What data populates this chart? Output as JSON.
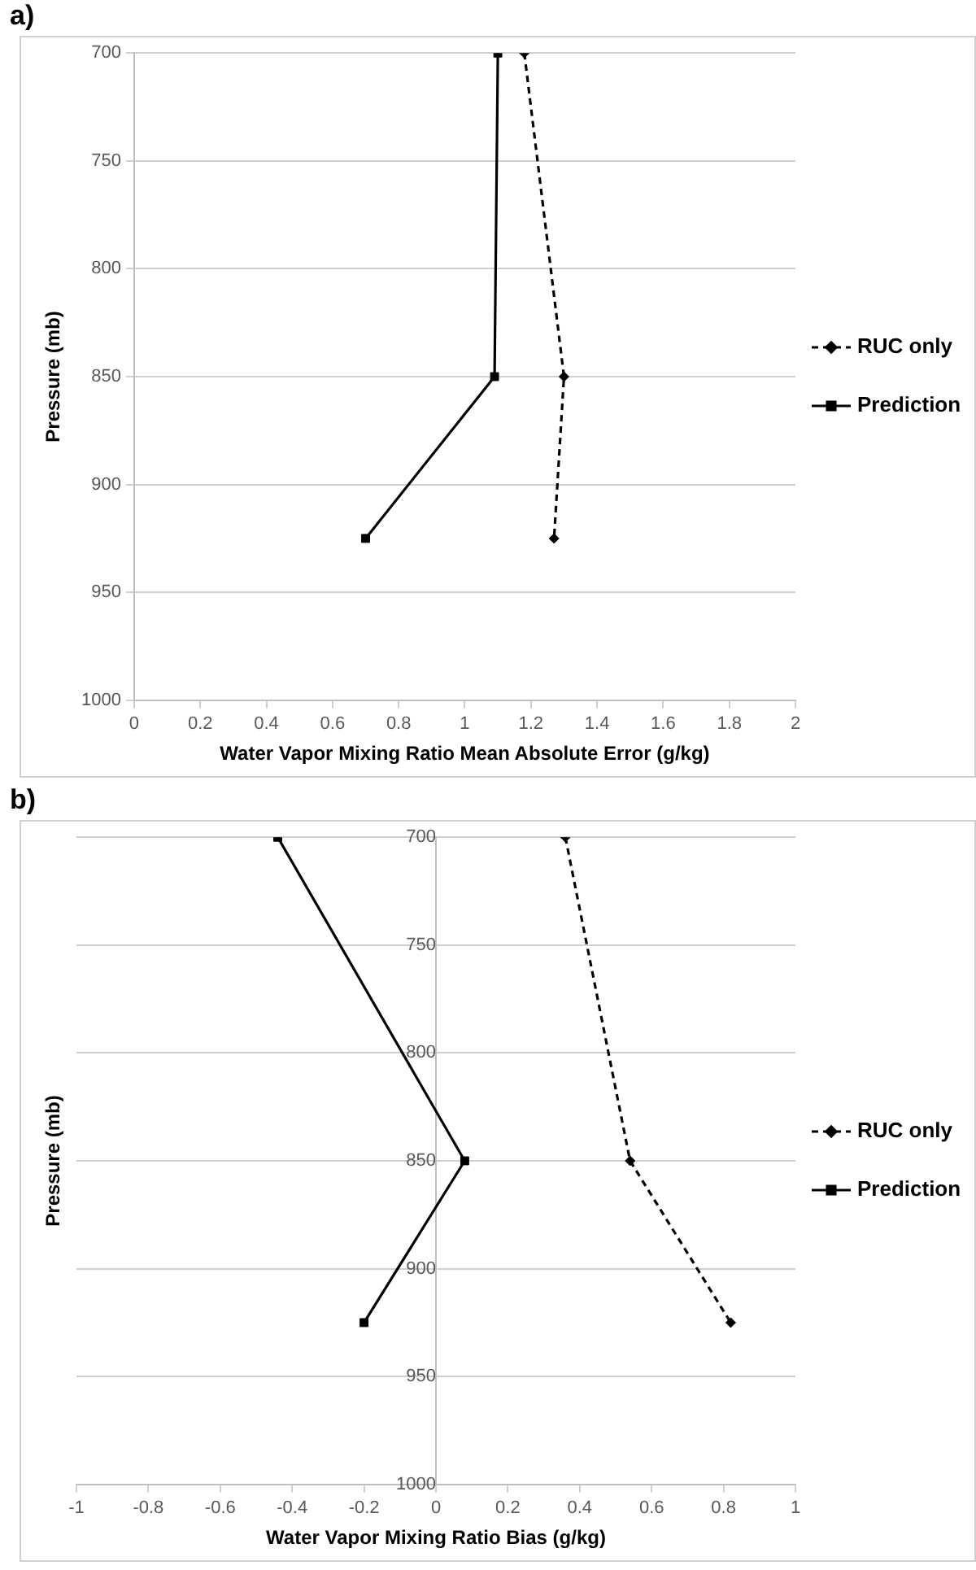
{
  "chart_data": [
    {
      "type": "line",
      "title": "a)",
      "xlabel": "Water Vapor Mixing Ratio Mean Absolute Error (g/kg)",
      "ylabel": "Pressure (mb)",
      "xlim": [
        0,
        2
      ],
      "xticks": [
        0,
        0.2,
        0.4,
        0.6,
        0.8,
        1,
        1.2,
        1.4,
        1.6,
        1.8,
        2
      ],
      "ylim": [
        1000,
        700
      ],
      "yticks": [
        700,
        750,
        800,
        850,
        900,
        950,
        1000
      ],
      "grid": "y",
      "legend": "right",
      "series": [
        {
          "name": "RUC only",
          "color": "#000000",
          "x": [
            1.18,
            1.3,
            1.27
          ],
          "values": [
            700,
            850,
            925
          ],
          "line_style": "dashed",
          "marker": "diamond"
        },
        {
          "name": "Prediction",
          "color": "#000000",
          "x": [
            1.1,
            1.09,
            0.7
          ],
          "values": [
            700,
            850,
            925
          ],
          "line_style": "solid",
          "marker": "square"
        }
      ]
    },
    {
      "type": "line",
      "title": "b)",
      "xlabel": "Water Vapor Mixing Ratio Bias (g/kg)",
      "ylabel": "Pressure (mb)",
      "xlim": [
        -1,
        1
      ],
      "xticks": [
        -1,
        -0.8,
        -0.6,
        -0.4,
        -0.2,
        0,
        0.2,
        0.4,
        0.6,
        0.8,
        1
      ],
      "ylim": [
        1000,
        700
      ],
      "yticks": [
        700,
        750,
        800,
        850,
        900,
        950,
        1000
      ],
      "grid": "y",
      "legend": "right",
      "series": [
        {
          "name": "RUC only",
          "color": "#000000",
          "x": [
            0.36,
            0.54,
            0.82
          ],
          "values": [
            700,
            850,
            925
          ],
          "line_style": "dashed",
          "marker": "diamond"
        },
        {
          "name": "Prediction",
          "color": "#000000",
          "x": [
            -0.44,
            0.08,
            -0.2
          ],
          "values": [
            700,
            850,
            925
          ],
          "line_style": "solid",
          "marker": "square"
        }
      ]
    }
  ]
}
